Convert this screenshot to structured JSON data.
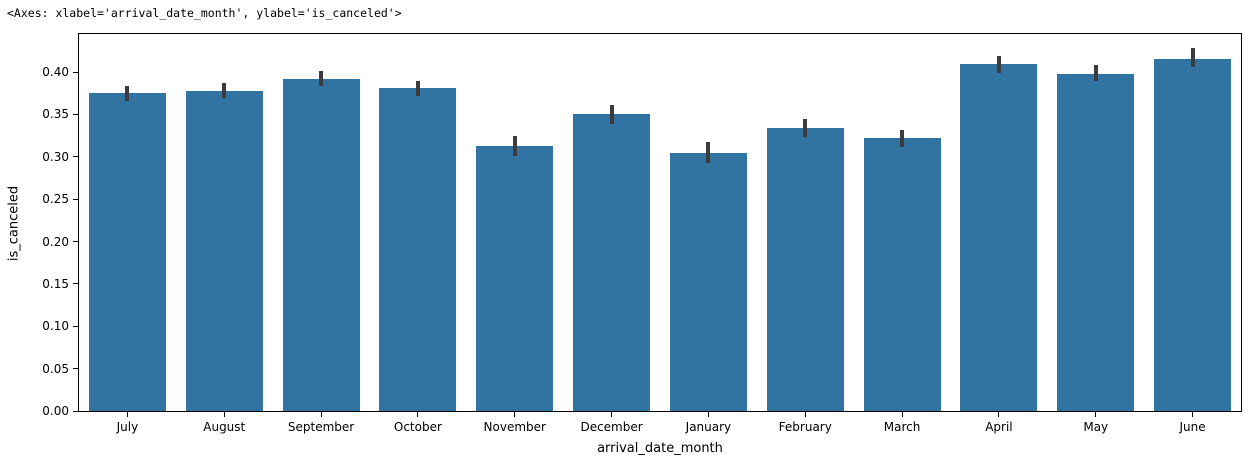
{
  "notebook_output": "<Axes: xlabel='arrival_date_month', ylabel='is_canceled'>",
  "chart_data": {
    "type": "bar",
    "title": "",
    "xlabel": "arrival_date_month",
    "ylabel": "is_canceled",
    "categories": [
      "July",
      "August",
      "September",
      "October",
      "November",
      "December",
      "January",
      "February",
      "March",
      "April",
      "May",
      "June"
    ],
    "values": [
      0.375,
      0.378,
      0.392,
      0.381,
      0.313,
      0.35,
      0.305,
      0.334,
      0.322,
      0.409,
      0.398,
      0.416
    ],
    "error_bars": {
      "ci_low": [
        0.366,
        0.369,
        0.384,
        0.372,
        0.301,
        0.339,
        0.293,
        0.323,
        0.312,
        0.399,
        0.389,
        0.406
      ],
      "ci_high": [
        0.384,
        0.387,
        0.401,
        0.39,
        0.325,
        0.361,
        0.317,
        0.345,
        0.332,
        0.419,
        0.408,
        0.428
      ]
    },
    "ytick_labels": [
      "0.00",
      "0.05",
      "0.10",
      "0.15",
      "0.20",
      "0.25",
      "0.30",
      "0.35",
      "0.40"
    ],
    "yticks": [
      0.0,
      0.05,
      0.1,
      0.15,
      0.2,
      0.25,
      0.3,
      0.35,
      0.4
    ],
    "ylim": [
      0,
      0.445
    ],
    "grid": false,
    "legend": null,
    "bar_color": "#3274a1",
    "error_bar_color": "#3c3c3c"
  }
}
